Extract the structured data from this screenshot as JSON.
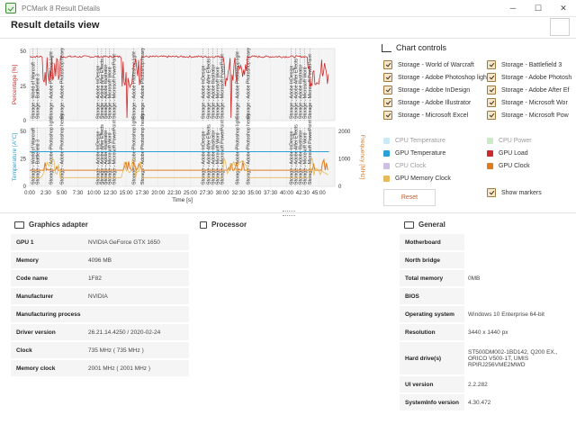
{
  "window": {
    "title": "PCMark 8 Result Details"
  },
  "window_controls": {
    "minimize": "─",
    "maximize": "☐",
    "close": "✕"
  },
  "header": {
    "title": "Result details view"
  },
  "chart_data": {
    "type": "line",
    "xlabel": "Time [s]",
    "x_ticks": [
      "0:00",
      "2:30",
      "5:00",
      "7:30",
      "10:00",
      "12:30",
      "15:00",
      "17:30",
      "20:00",
      "22:30",
      "25:00",
      "27:30",
      "30:00",
      "32:30",
      "35:00",
      "37:30",
      "40:00",
      "42:30",
      "45:00"
    ],
    "y_left_top_label": "Percentage [%]",
    "y_left_top_ticks": [
      "0",
      "25",
      "50"
    ],
    "y_left_bottom_label": "Temperature [A°C]",
    "y_left_bottom_ticks": [
      "0",
      "25",
      "50"
    ],
    "y_right_label": "Frequency [MHz]",
    "y_right_ticks": [
      "0",
      "1000",
      "2000"
    ],
    "series": [
      {
        "name": "GPU Load",
        "color": "#cc2b2b",
        "values_desc": "spiky 0-50%"
      },
      {
        "name": "GPU Temperature",
        "color": "#2aa0d8",
        "values": [
          37,
          37,
          37,
          37,
          37,
          37,
          37,
          37,
          37,
          37,
          37,
          37,
          37,
          37,
          37,
          37,
          37,
          37
        ]
      },
      {
        "name": "GPU Clock",
        "color": "#e07a1f",
        "values": [
          735,
          735,
          735,
          735,
          735,
          735,
          735,
          735,
          735,
          735,
          735,
          735,
          735,
          735,
          735,
          735,
          735,
          735
        ]
      },
      {
        "name": "GPU Memory Clock",
        "color": "#e8b95b",
        "values": [
          400,
          400,
          400,
          400,
          400,
          400,
          400,
          400,
          400,
          400,
          400,
          400,
          400,
          400,
          400,
          400,
          400,
          400
        ]
      }
    ],
    "markers": [
      {
        "label": "Storage - World of Warcraft",
        "t": 0.5
      },
      {
        "label": "Storage - Battlefield 3",
        "t": 1.2
      },
      {
        "label": "Storage - Adobe Photoshop light",
        "t": 3.3
      },
      {
        "label": "Storage - Adobe Photoshop heavy",
        "t": 5.0
      },
      {
        "label": "Storage - Adobe InDesign",
        "t": 10.6
      },
      {
        "label": "Storage - Adobe After Effects",
        "t": 11.2
      },
      {
        "label": "Storage - Adobe Illustrator",
        "t": 11.8
      },
      {
        "label": "Storage - Microsoft Word",
        "t": 12.4
      },
      {
        "label": "Storage - Microsoft PowerPoint",
        "t": 13.1
      },
      {
        "label": "Storage - Adobe Photoshop light",
        "t": 16.2
      },
      {
        "label": "Storage - Adobe Photoshop heavy",
        "t": 17.5
      },
      {
        "label": "Storage - Adobe InDesign",
        "t": 27.0
      },
      {
        "label": "Storage - Adobe After Effects",
        "t": 27.8
      },
      {
        "label": "Storage - Adobe Illustrator",
        "t": 28.5
      },
      {
        "label": "Storage - Microsoft Word",
        "t": 29.2
      },
      {
        "label": "Storage - Microsoft PowerPoint",
        "t": 29.9
      },
      {
        "label": "Storage - Adobe Photoshop light",
        "t": 32.3
      },
      {
        "label": "Storage - Adobe Photoshop heavy",
        "t": 34.0
      },
      {
        "label": "Storage - Adobe InDesign",
        "t": 40.7
      },
      {
        "label": "Storage - Adobe After Effects",
        "t": 41.4
      },
      {
        "label": "Storage - Adobe Illustrator",
        "t": 42.1
      },
      {
        "label": "Storage - Microsoft Word",
        "t": 42.8
      },
      {
        "label": "Storage - Microsoft PowerPoint",
        "t": 43.6
      }
    ]
  },
  "chart_controls": {
    "title": "Chart controls",
    "storage_items": [
      {
        "label": "Storage - World of Warcraft",
        "checked": true
      },
      {
        "label": "Storage - Battlefield 3",
        "checked": true
      },
      {
        "label": "Storage - Adobe Photoshop light",
        "checked": true
      },
      {
        "label": "Storage - Adobe Photosh",
        "checked": true
      },
      {
        "label": "Storage - Adobe InDesign",
        "checked": true
      },
      {
        "label": "Storage - Adobe After Ef",
        "checked": true
      },
      {
        "label": "Storage - Adobe Illustrator",
        "checked": true
      },
      {
        "label": "Storage - Microsoft Wor",
        "checked": true
      },
      {
        "label": "Storage - Microsoft Excel",
        "checked": true
      },
      {
        "label": "Storage - Microsoft Pow",
        "checked": true
      }
    ],
    "metrics": [
      {
        "label": "CPU Temperature",
        "checked": false,
        "color": "#9fd8ee",
        "enabled": false
      },
      {
        "label": "CPU Power",
        "checked": false,
        "color": "#9ed99a",
        "enabled": false
      },
      {
        "label": "GPU Temperature",
        "checked": true,
        "color": "#2aa0d8",
        "enabled": true
      },
      {
        "label": "GPU Load",
        "checked": true,
        "color": "#cc2b2b",
        "enabled": true
      },
      {
        "label": "CPU Clock",
        "checked": false,
        "color": "#a889d0",
        "enabled": false
      },
      {
        "label": "GPU Clock",
        "checked": true,
        "color": "#e07a1f",
        "enabled": true
      },
      {
        "label": "GPU Memory Clock",
        "checked": true,
        "color": "#e8b95b",
        "enabled": true
      }
    ],
    "show_markers_label": "Show markers",
    "reset_label": "Reset"
  },
  "graphics_adapter": {
    "title": "Graphics adapter",
    "rows": [
      {
        "k": "GPU 1",
        "v": "NVIDIA GeForce GTX 1650"
      },
      {
        "k": "Memory",
        "v": "4096 MB"
      },
      {
        "k": "Code name",
        "v": "1F82"
      },
      {
        "k": "Manufacturer",
        "v": "NVIDIA"
      },
      {
        "k": "Manufacturing process",
        "v": ""
      },
      {
        "k": "Driver version",
        "v": "26.21.14.4250 / 2020-02-24"
      },
      {
        "k": "Clock",
        "v": "735 MHz ( 735 MHz )"
      },
      {
        "k": "Memory clock",
        "v": "2001 MHz ( 2001 MHz )"
      }
    ]
  },
  "processor": {
    "title": "Processor"
  },
  "general": {
    "title": "General",
    "rows": [
      {
        "k": "Motherboard",
        "v": ""
      },
      {
        "k": "North bridge",
        "v": ""
      },
      {
        "k": "Total memory",
        "v": "0MB"
      },
      {
        "k": "BIOS",
        "v": ""
      },
      {
        "k": "Operating system",
        "v": "Windows 10 Enterprise 64-bit"
      },
      {
        "k": "Resolution",
        "v": "3440 x 1440 px"
      },
      {
        "k": "Hard drive(s)",
        "v": "ST500DM002-1BD142, Q200 EX., ORICO V500-1T, UMIS RPIRJ256VME2MWD"
      },
      {
        "k": "UI version",
        "v": "2.2.282"
      },
      {
        "k": "SystemInfo version",
        "v": "4.30.472"
      }
    ]
  }
}
